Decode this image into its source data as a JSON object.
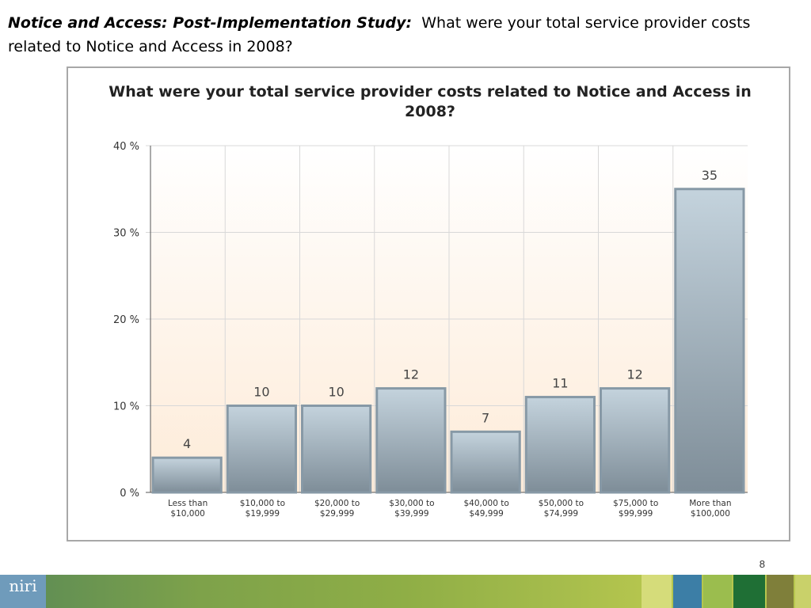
{
  "slide": {
    "title_lead": "Notice and Access: Post-Implementation Study:",
    "title_rest": "What were your total service provider costs related to Notice and Access in 2008?",
    "page_number": "8",
    "logo_text": "niri"
  },
  "chart_data": {
    "type": "bar",
    "title": "What were your total service provider costs related to Notice and Access in 2008?",
    "categories": [
      [
        "Less than",
        "$10,000"
      ],
      [
        "$10,000 to",
        "$19,999"
      ],
      [
        "$20,000 to",
        "$29,999"
      ],
      [
        "$30,000 to",
        "$39,999"
      ],
      [
        "$40,000 to",
        "$49,999"
      ],
      [
        "$50,000 to",
        "$74,999"
      ],
      [
        "$75,000 to",
        "$99,999"
      ],
      [
        "More than",
        "$100,000"
      ]
    ],
    "values": [
      4,
      10,
      10,
      12,
      7,
      11,
      12,
      35
    ],
    "ylim": [
      0,
      40
    ],
    "yticks": [
      0,
      10,
      20,
      30,
      40
    ],
    "ytick_labels": [
      "0 %",
      "10 %",
      "20 %",
      "30 %",
      "40 %"
    ],
    "grid": true,
    "data_labels": true,
    "colors": {
      "bar_top": "#c4d3dd",
      "bar_bottom": "#7e8d98",
      "bar_edge": "#8799a6",
      "plot_bg_top": "#ffffff",
      "plot_bg_bottom": "#fdebd8",
      "grid": "#d8d8d8"
    }
  }
}
